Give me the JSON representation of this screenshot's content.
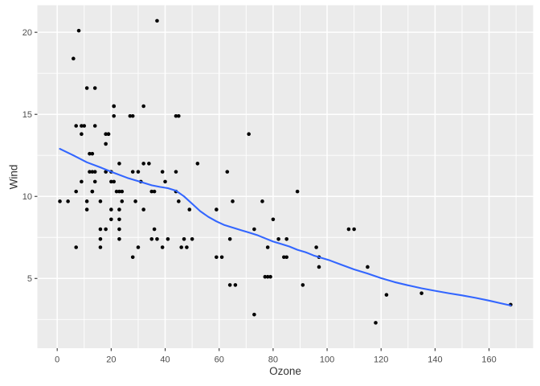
{
  "chart_data": {
    "type": "scatter",
    "title": "",
    "xlabel": "Ozone",
    "ylabel": "Wind",
    "x_ticks": [
      0,
      20,
      40,
      60,
      80,
      100,
      120,
      140,
      160
    ],
    "y_ticks": [
      5,
      10,
      15,
      20
    ],
    "x_minor_ticks": [
      10,
      30,
      50,
      70,
      90,
      110,
      130,
      150,
      170
    ],
    "y_minor_ticks": [
      2.5,
      7.5,
      12.5,
      17.5
    ],
    "xlim": [
      -7.35,
      176.35
    ],
    "ylim": [
      0.75,
      21.65
    ],
    "grid": "major-and-minor-white-on-grey-panel",
    "legend": "none",
    "colors": {
      "panel_bg": "#EBEBEB",
      "plot_bg": "#FFFFFF",
      "grid": "#FFFFFF",
      "point": "#000000",
      "smooth_line": "#3366FF",
      "tick_text": "#4D4D4D",
      "axis_title_text": "#333333",
      "tick_mark": "#333333"
    },
    "series": [
      {
        "name": "observations",
        "type": "scatter",
        "points": [
          [
            41,
            7.4
          ],
          [
            36,
            8.0
          ],
          [
            12,
            12.6
          ],
          [
            18,
            11.5
          ],
          [
            28,
            14.9
          ],
          [
            23,
            8.6
          ],
          [
            19,
            13.8
          ],
          [
            8,
            20.1
          ],
          [
            7,
            6.9
          ],
          [
            16,
            9.7
          ],
          [
            11,
            9.2
          ],
          [
            14,
            10.9
          ],
          [
            18,
            13.2
          ],
          [
            14,
            11.5
          ],
          [
            34,
            12.0
          ],
          [
            6,
            18.4
          ],
          [
            30,
            11.5
          ],
          [
            11,
            9.7
          ],
          [
            1,
            9.7
          ],
          [
            11,
            16.6
          ],
          [
            4,
            9.7
          ],
          [
            32,
            12.0
          ],
          [
            23,
            12.0
          ],
          [
            45,
            14.9
          ],
          [
            115,
            5.7
          ],
          [
            37,
            7.4
          ],
          [
            29,
            9.7
          ],
          [
            71,
            13.8
          ],
          [
            39,
            11.5
          ],
          [
            23,
            8.0
          ],
          [
            21,
            14.9
          ],
          [
            37,
            20.7
          ],
          [
            20,
            9.2
          ],
          [
            12,
            11.5
          ],
          [
            13,
            10.3
          ],
          [
            135,
            4.1
          ],
          [
            49,
            9.2
          ],
          [
            32,
            9.2
          ],
          [
            64,
            4.6
          ],
          [
            40,
            10.9
          ],
          [
            77,
            5.1
          ],
          [
            97,
            6.3
          ],
          [
            97,
            5.7
          ],
          [
            85,
            7.4
          ],
          [
            10,
            14.3
          ],
          [
            27,
            14.9
          ],
          [
            7,
            14.3
          ],
          [
            48,
            6.9
          ],
          [
            35,
            10.3
          ],
          [
            61,
            6.3
          ],
          [
            79,
            5.1
          ],
          [
            63,
            11.5
          ],
          [
            16,
            6.9
          ],
          [
            80,
            8.6
          ],
          [
            108,
            8.0
          ],
          [
            20,
            8.6
          ],
          [
            52,
            12.0
          ],
          [
            82,
            7.4
          ],
          [
            50,
            7.4
          ],
          [
            64,
            7.4
          ],
          [
            59,
            9.2
          ],
          [
            39,
            6.9
          ],
          [
            9,
            13.8
          ],
          [
            16,
            7.4
          ],
          [
            78,
            6.9
          ],
          [
            35,
            7.4
          ],
          [
            66,
            4.6
          ],
          [
            122,
            4.0
          ],
          [
            89,
            10.3
          ],
          [
            110,
            8.0
          ],
          [
            44,
            11.5
          ],
          [
            28,
            11.5
          ],
          [
            65,
            9.7
          ],
          [
            22,
            10.3
          ],
          [
            59,
            6.3
          ],
          [
            23,
            7.4
          ],
          [
            31,
            10.9
          ],
          [
            44,
            10.3
          ],
          [
            21,
            15.5
          ],
          [
            9,
            14.3
          ],
          [
            45,
            9.7
          ],
          [
            168,
            3.4
          ],
          [
            73,
            8.0
          ],
          [
            76,
            9.7
          ],
          [
            118,
            2.3
          ],
          [
            84,
            6.3
          ],
          [
            85,
            6.3
          ],
          [
            96,
            6.9
          ],
          [
            78,
            5.1
          ],
          [
            73,
            2.8
          ],
          [
            91,
            4.6
          ],
          [
            47,
            7.4
          ],
          [
            32,
            15.5
          ],
          [
            20,
            10.9
          ],
          [
            23,
            10.3
          ],
          [
            21,
            10.9
          ],
          [
            24,
            9.7
          ],
          [
            44,
            14.9
          ],
          [
            21,
            15.5
          ],
          [
            28,
            6.3
          ],
          [
            9,
            10.9
          ],
          [
            13,
            11.5
          ],
          [
            46,
            6.9
          ],
          [
            18,
            13.8
          ],
          [
            13,
            10.3
          ],
          [
            24,
            10.3
          ],
          [
            16,
            8.0
          ],
          [
            13,
            12.6
          ],
          [
            23,
            9.2
          ],
          [
            36,
            10.3
          ],
          [
            7,
            10.3
          ],
          [
            14,
            16.6
          ],
          [
            30,
            6.9
          ],
          [
            14,
            14.3
          ],
          [
            18,
            8.0
          ],
          [
            20,
            11.5
          ],
          [
            19,
            13.8
          ]
        ]
      },
      {
        "name": "loess-smooth",
        "type": "line",
        "points": [
          [
            1,
            12.9
          ],
          [
            6,
            12.5
          ],
          [
            11,
            12.08
          ],
          [
            16,
            11.77
          ],
          [
            21,
            11.44
          ],
          [
            26,
            11.13
          ],
          [
            31,
            10.88
          ],
          [
            35,
            10.68
          ],
          [
            38,
            10.58
          ],
          [
            41,
            10.5
          ],
          [
            44,
            10.35
          ],
          [
            47,
            10.0
          ],
          [
            50,
            9.55
          ],
          [
            53,
            9.1
          ],
          [
            56,
            8.75
          ],
          [
            59,
            8.48
          ],
          [
            62,
            8.25
          ],
          [
            65,
            8.1
          ],
          [
            68,
            7.95
          ],
          [
            71,
            7.8
          ],
          [
            74,
            7.65
          ],
          [
            77,
            7.45
          ],
          [
            80,
            7.25
          ],
          [
            83,
            7.1
          ],
          [
            86,
            6.95
          ],
          [
            89,
            6.75
          ],
          [
            92,
            6.6
          ],
          [
            95,
            6.4
          ],
          [
            98,
            6.25
          ],
          [
            101,
            6.1
          ],
          [
            105,
            5.85
          ],
          [
            110,
            5.55
          ],
          [
            115,
            5.3
          ],
          [
            120,
            5.02
          ],
          [
            125,
            4.78
          ],
          [
            130,
            4.58
          ],
          [
            135,
            4.4
          ],
          [
            140,
            4.25
          ],
          [
            145,
            4.1
          ],
          [
            150,
            3.97
          ],
          [
            155,
            3.82
          ],
          [
            160,
            3.65
          ],
          [
            164,
            3.5
          ],
          [
            168,
            3.35
          ]
        ]
      }
    ]
  }
}
